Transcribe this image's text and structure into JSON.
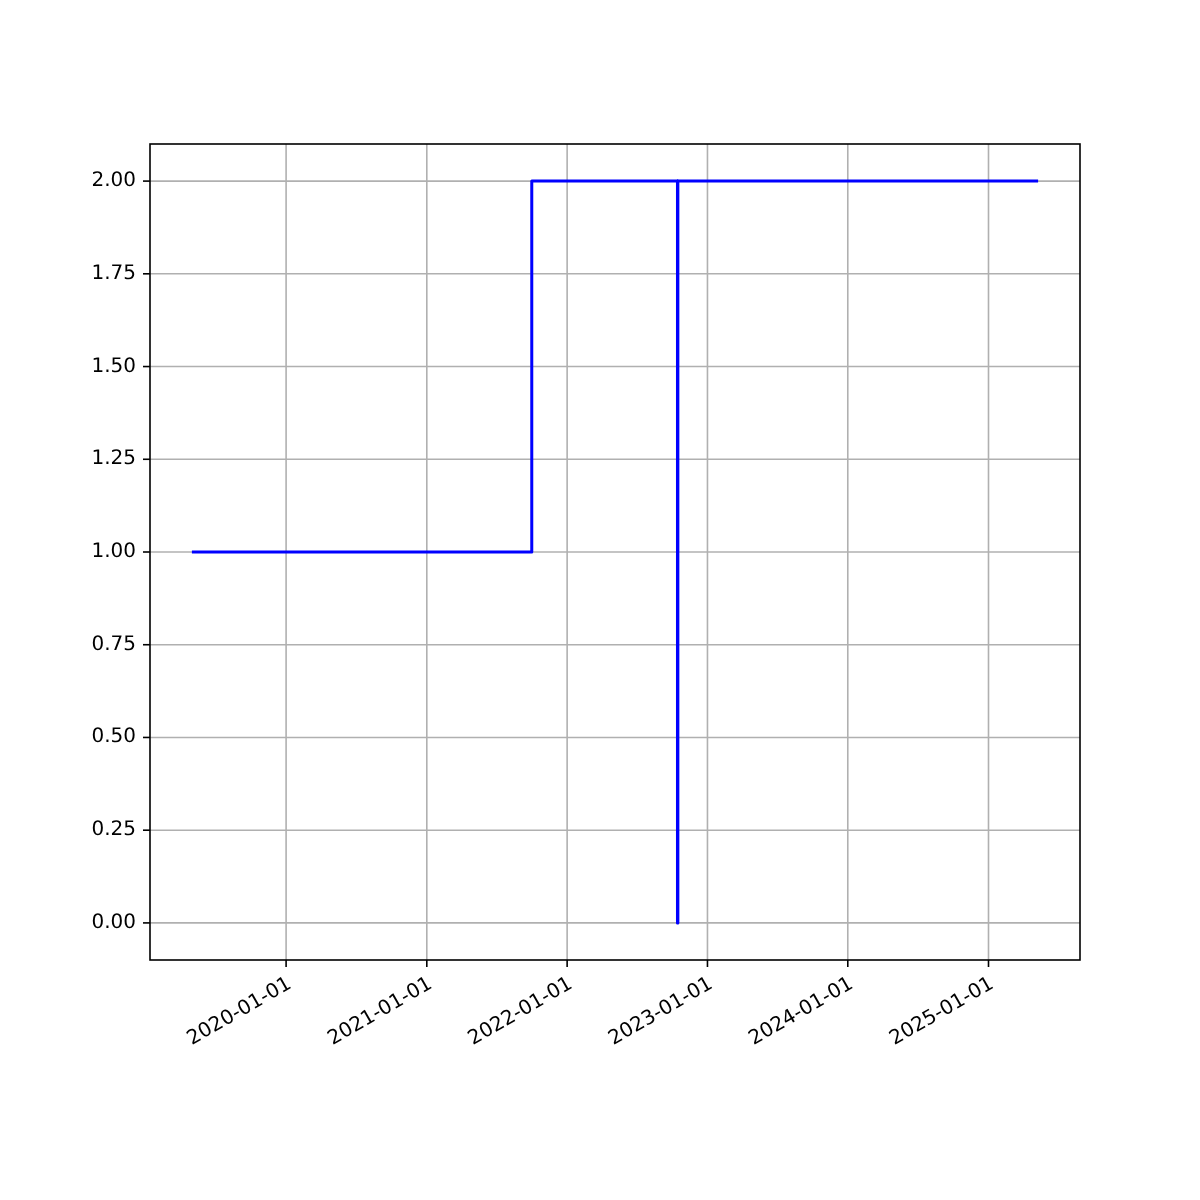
{
  "chart_data": {
    "type": "step",
    "x": [
      "2019-05-01",
      "2021-10-01",
      "2022-10-15",
      "2022-10-16",
      "2025-05-10"
    ],
    "series": [
      {
        "color": "#0000ff",
        "values": [
          1,
          2,
          0,
          2,
          2
        ]
      }
    ],
    "xlim": [
      "2019-01-12",
      "2025-08-27"
    ],
    "xticks": [
      {
        "value": "2020-01-01",
        "label": "2020-01-01"
      },
      {
        "value": "2021-01-01",
        "label": "2021-01-01"
      },
      {
        "value": "2022-01-01",
        "label": "2022-01-01"
      },
      {
        "value": "2023-01-01",
        "label": "2023-01-01"
      },
      {
        "value": "2024-01-01",
        "label": "2024-01-01"
      },
      {
        "value": "2025-01-01",
        "label": "2025-01-01"
      }
    ],
    "ylim": [
      -0.1,
      2.1
    ],
    "yticks": [
      {
        "value": 0,
        "label": "0.00"
      },
      {
        "value": 0.25,
        "label": "0.25"
      },
      {
        "value": 0.5,
        "label": "0.50"
      },
      {
        "value": 0.75,
        "label": "0.75"
      },
      {
        "value": 1,
        "label": "1.00"
      },
      {
        "value": 1.25,
        "label": "1.25"
      },
      {
        "value": 1.5,
        "label": "1.50"
      },
      {
        "value": 1.75,
        "label": "1.75"
      },
      {
        "value": 2,
        "label": "2.00"
      }
    ],
    "grid": true
  }
}
